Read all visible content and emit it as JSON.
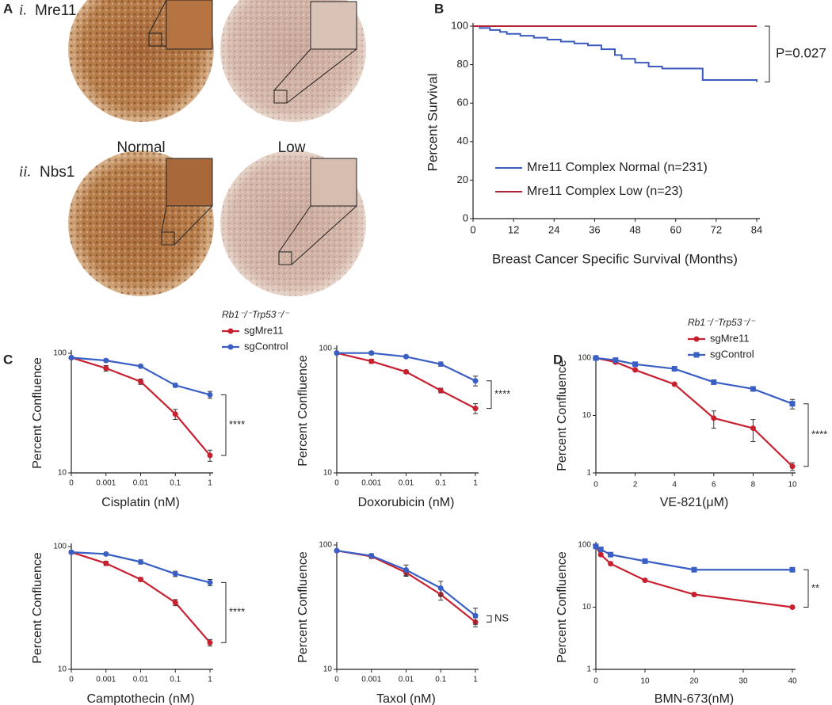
{
  "images": {
    "panel": "A",
    "rows": [
      {
        "numeral": "i.",
        "label": "Mre11"
      },
      {
        "numeral": "ii.",
        "label": "Nbs1"
      }
    ],
    "columns": [
      "Normal",
      "Low"
    ]
  },
  "chart_data": [
    {
      "type": "survival",
      "panel": "B",
      "xlabel": "Breast Cancer Specific Survival (Months)",
      "ylabel": "Percent Survival",
      "annotation": "P=0.027",
      "legend": true,
      "xlim": [
        0,
        84
      ],
      "xticks": [
        0,
        12,
        24,
        36,
        48,
        60,
        72,
        84
      ],
      "ylim": [
        0,
        100
      ],
      "yticks": [
        0,
        20,
        40,
        60,
        80,
        100
      ],
      "series": [
        {
          "name": "Mre11 Complex Normal (n=231)",
          "color": "#3b5bbf",
          "x": [
            0,
            2,
            5,
            8,
            10,
            14,
            18,
            22,
            26,
            30,
            34,
            38,
            42,
            44,
            48,
            52,
            56,
            66,
            68,
            84
          ],
          "values": [
            100,
            99,
            98,
            97,
            96,
            95,
            94,
            93,
            92,
            91,
            90,
            88,
            85,
            83,
            81,
            79,
            78,
            78,
            72,
            71
          ]
        },
        {
          "name": "Mre11 Complex Low (n=23)",
          "color": "#b22234",
          "x": [
            0,
            84
          ],
          "values": [
            100,
            100
          ]
        }
      ]
    },
    {
      "type": "dose",
      "panel": "C",
      "xlabel": "Cisplatin (nM)",
      "ylabel": "Percent Confluence",
      "annotation": "****",
      "legend": true,
      "legend_title": "Rb1⁻/⁻Trp53⁻/⁻",
      "log": true,
      "categories": [
        "0",
        "0.001",
        "0.01",
        "0.1",
        "1"
      ],
      "ylim": [
        10,
        100
      ],
      "yticks": [
        10,
        100
      ],
      "series": [
        {
          "name": "sgMre11",
          "color": "#c8202f",
          "marker": "circle",
          "values": [
            92,
            75,
            58,
            31,
            14
          ],
          "errors": [
            2,
            4,
            3,
            3,
            1.5
          ]
        },
        {
          "name": "sgControl",
          "color": "#3a5fc4",
          "marker": "circle",
          "values": [
            92,
            87,
            78,
            54,
            45
          ],
          "errors": [
            2,
            2,
            2,
            2,
            3
          ]
        }
      ]
    },
    {
      "type": "dose",
      "xlabel": "Doxorubicin (nM)",
      "ylabel": "Percent Confluence",
      "annotation": "****",
      "log": true,
      "categories": [
        "0",
        "0.001",
        "0.01",
        "0.1",
        "1"
      ],
      "ylim": [
        10,
        100
      ],
      "yticks": [
        10,
        100
      ],
      "series": [
        {
          "name": "sgMre11",
          "color": "#c8202f",
          "marker": "circle",
          "values": [
            92,
            79,
            65,
            46,
            33
          ],
          "errors": [
            2,
            3,
            2,
            2,
            3
          ]
        },
        {
          "name": "sgControl",
          "color": "#3a5fc4",
          "marker": "circle",
          "values": [
            92,
            92,
            86,
            75,
            55
          ],
          "errors": [
            2,
            3,
            2,
            3,
            5
          ]
        }
      ]
    },
    {
      "type": "dose",
      "xlabel": "Camptothecin (nM)",
      "ylabel": "Percent Confluence",
      "annotation": "****",
      "log": true,
      "categories": [
        "0",
        "0.001",
        "0.01",
        "0.1",
        "1"
      ],
      "ylim": [
        10,
        100
      ],
      "yticks": [
        10,
        100
      ],
      "series": [
        {
          "name": "sgMre11",
          "color": "#c8202f",
          "marker": "circle",
          "values": [
            90,
            73,
            54,
            35,
            16.5
          ],
          "errors": [
            2,
            3,
            2,
            2,
            1
          ]
        },
        {
          "name": "sgControl",
          "color": "#3a5fc4",
          "marker": "circle",
          "values": [
            90,
            87,
            75,
            60,
            51
          ],
          "errors": [
            2,
            2,
            3,
            3,
            3
          ]
        }
      ]
    },
    {
      "type": "dose",
      "xlabel": "Taxol (nM)",
      "ylabel": "Percent Confluence",
      "annotation": "NS",
      "log": true,
      "categories": [
        "0",
        "0.001",
        "0.01",
        "0.1",
        "1"
      ],
      "ylim": [
        10,
        100
      ],
      "yticks": [
        10,
        100
      ],
      "series": [
        {
          "name": "sgMre11",
          "color": "#c8202f",
          "marker": "circle",
          "values": [
            90,
            81,
            60,
            40,
            24
          ],
          "errors": [
            2,
            3,
            4,
            4,
            2
          ]
        },
        {
          "name": "sgControl",
          "color": "#3a5fc4",
          "marker": "circle",
          "values": [
            90,
            82,
            63,
            45,
            27
          ],
          "errors": [
            2,
            3,
            6,
            6,
            4
          ]
        }
      ]
    },
    {
      "type": "dose",
      "panel": "D",
      "xlabel": "VE-821(μM)",
      "ylabel": "Percent Confluence",
      "annotation": "****",
      "legend": true,
      "legend_title": "Rb1⁻/⁻Trp53⁻/⁻",
      "log": true,
      "xlim": [
        0,
        10
      ],
      "xticks": [
        0,
        2,
        4,
        6,
        8,
        10
      ],
      "ylim": [
        1,
        100
      ],
      "yticks": [
        1,
        10,
        100
      ],
      "series": [
        {
          "name": "sgMre11",
          "color": "#c8202f",
          "marker": "circle",
          "x": [
            0,
            1,
            2,
            4,
            6,
            8,
            10
          ],
          "values": [
            100,
            85,
            62,
            35,
            9,
            6,
            1.3
          ],
          "errors": [
            3,
            3,
            2,
            2,
            3,
            2.5,
            0.2
          ]
        },
        {
          "name": "sgControl",
          "color": "#3a5fc4",
          "marker": "square",
          "x": [
            0,
            1,
            2,
            4,
            6,
            8,
            10
          ],
          "values": [
            100,
            92,
            78,
            65,
            38,
            29,
            16
          ],
          "errors": [
            3,
            3,
            3,
            3,
            2,
            2,
            3
          ]
        }
      ]
    },
    {
      "type": "dose",
      "xlabel": "BMN-673(nM)",
      "ylabel": "Percent Confluence",
      "annotation": "**",
      "log": true,
      "xlim": [
        0,
        40
      ],
      "xticks": [
        0,
        10,
        20,
        30,
        40
      ],
      "ylim": [
        1,
        100
      ],
      "yticks": [
        1,
        10,
        100
      ],
      "series": [
        {
          "name": "sgMre11",
          "color": "#c8202f",
          "marker": "circle",
          "x": [
            0,
            1,
            3,
            10,
            20,
            40
          ],
          "values": [
            95,
            70,
            50,
            27,
            16,
            10
          ],
          "errors": [
            3,
            3,
            2,
            1,
            1,
            0.5
          ]
        },
        {
          "name": "sgControl",
          "color": "#3a5fc4",
          "marker": "square",
          "x": [
            0,
            1,
            3,
            10,
            20,
            40
          ],
          "values": [
            95,
            85,
            70,
            55,
            40,
            40
          ],
          "errors": [
            3,
            3,
            3,
            2,
            2,
            2
          ]
        }
      ]
    }
  ]
}
